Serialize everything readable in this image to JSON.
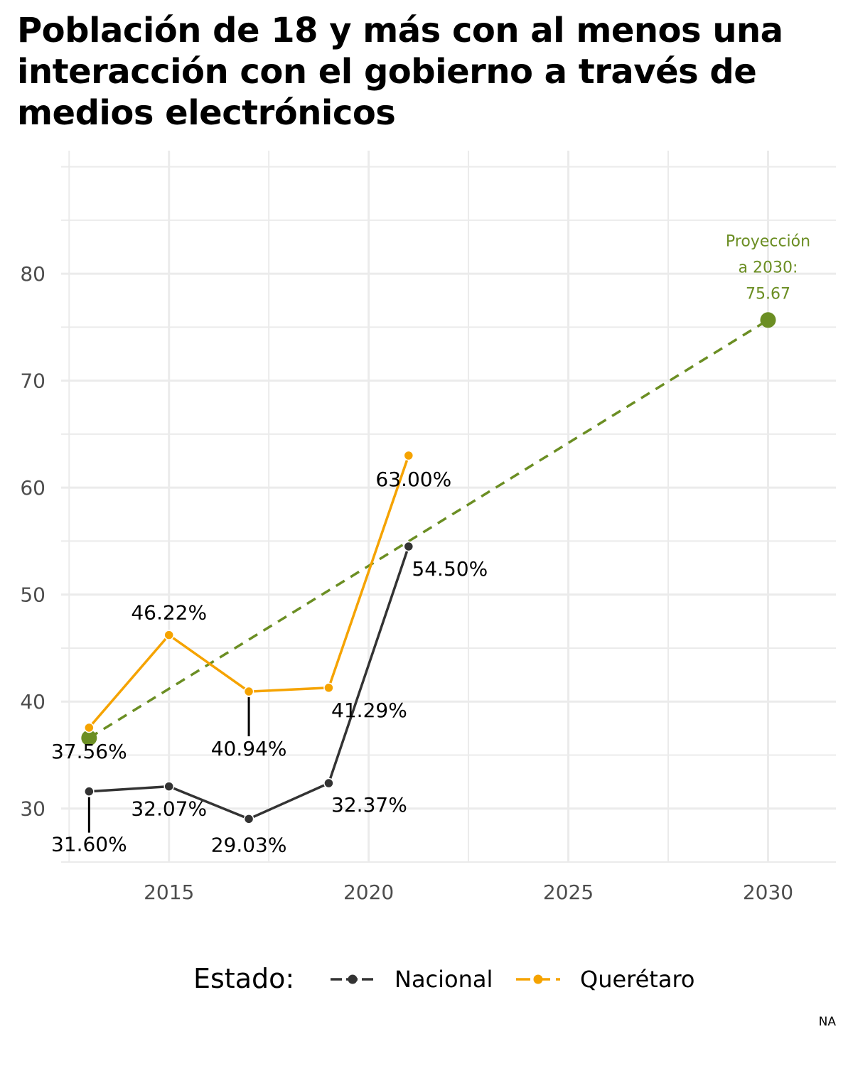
{
  "chart_data": {
    "type": "line",
    "title": "Población de 18 y más con al menos una interacción con el gobierno a través de medios electrónicos",
    "xlabel": "",
    "ylabel": "",
    "xlim": [
      2012.3,
      2031.7
    ],
    "ylim": [
      25,
      91.5
    ],
    "x_ticks": [
      2015,
      2020,
      2025,
      2030
    ],
    "y_ticks": [
      30,
      40,
      50,
      60,
      70,
      80
    ],
    "grid": true,
    "legend": {
      "title": "Estado:",
      "position": "bottom",
      "entries": [
        "Nacional",
        "Querétaro"
      ]
    },
    "series": [
      {
        "name": "Nacional",
        "color": "#333333",
        "x": [
          2013,
          2015,
          2017,
          2019,
          2021
        ],
        "y": [
          31.6,
          32.07,
          29.03,
          32.37,
          54.5
        ],
        "labels": [
          "31.60%",
          "32.07%",
          "29.03%",
          "32.37%",
          "54.50%"
        ]
      },
      {
        "name": "Querétaro",
        "color": "#F5A300",
        "x": [
          2013,
          2015,
          2017,
          2019,
          2021
        ],
        "y": [
          37.56,
          46.22,
          40.94,
          41.29,
          63.0
        ],
        "labels": [
          "37.56%",
          "46.22%",
          "40.94%",
          "41.29%",
          "63.00%"
        ]
      }
    ],
    "projection": {
      "color": "#6B8E23",
      "x": [
        2013,
        2030
      ],
      "y": [
        36.6,
        75.67
      ],
      "annotation": [
        "Proyección",
        "a 2030:",
        "75.67"
      ]
    },
    "caption": "NA"
  }
}
